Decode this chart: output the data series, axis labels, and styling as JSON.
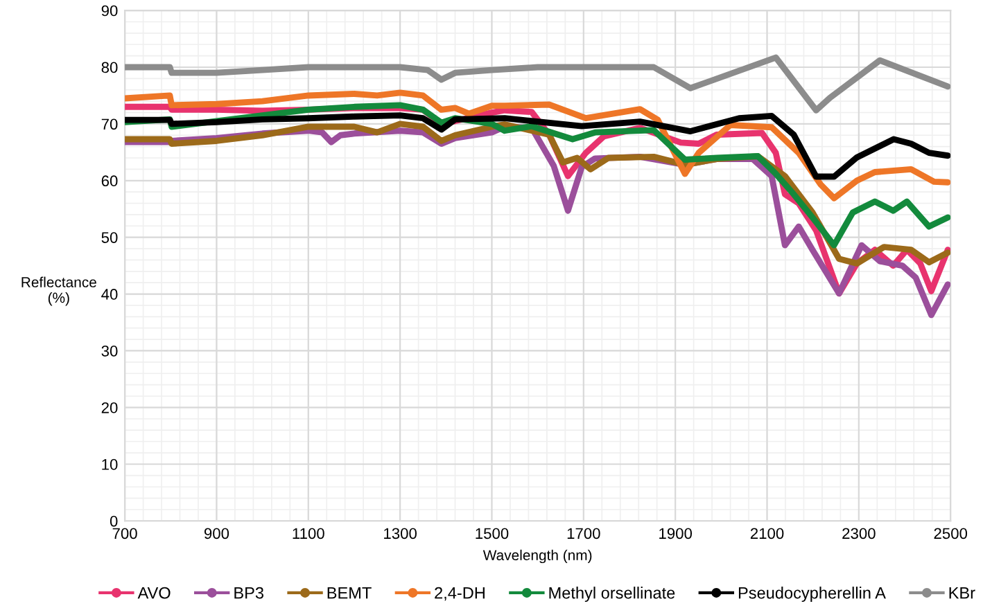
{
  "chart_data": {
    "type": "line",
    "xlabel": "Wavelength (nm)",
    "ylabel": "Reflectance\n(%)",
    "xlim": [
      700,
      2500
    ],
    "ylim": [
      0,
      90
    ],
    "xticks": [
      700,
      900,
      1100,
      1300,
      1500,
      1700,
      1900,
      2100,
      2300,
      2500
    ],
    "yticks": [
      0,
      10,
      20,
      30,
      40,
      50,
      60,
      70,
      80,
      90
    ],
    "grid": true,
    "legend": "bottom",
    "line_style": "solid",
    "series": [
      {
        "name": "AVO",
        "color": "#e8336e",
        "x": [
          700,
          798,
          802,
          900,
          1000,
          1100,
          1200,
          1300,
          1350,
          1390,
          1420,
          1500,
          1528,
          1587,
          1625,
          1666,
          1705,
          1744,
          1823,
          1912,
          1951,
          1990,
          2089,
          2119,
          2139,
          2169,
          2207,
          2257,
          2296,
          2335,
          2375,
          2405,
          2434,
          2458,
          2494
        ],
        "values": [
          73,
          73,
          72.5,
          72.5,
          72.3,
          72.5,
          72.8,
          72.8,
          72.5,
          70,
          70.5,
          72,
          72.4,
          72.1,
          68.1,
          60.8,
          64.9,
          67.8,
          69.3,
          66.7,
          66.5,
          68.1,
          68.4,
          64.9,
          57.6,
          56,
          51.2,
          40.1,
          45.4,
          47.8,
          45,
          47.8,
          45.4,
          40.5,
          47.8
        ]
      },
      {
        "name": "BP3",
        "color": "#9b4f9b",
        "x": [
          700,
          798,
          802,
          900,
          1000,
          1100,
          1130,
          1150,
          1170,
          1200,
          1300,
          1350,
          1390,
          1420,
          1500,
          1528,
          1587,
          1635,
          1666,
          1696,
          1725,
          1823,
          1921,
          1990,
          2069,
          2110,
          2139,
          2169,
          2199,
          2257,
          2306,
          2346,
          2395,
          2424,
          2458,
          2494
        ],
        "values": [
          66.8,
          66.8,
          67,
          67.5,
          68.3,
          68.8,
          68.5,
          66.8,
          68,
          68.3,
          68.8,
          68.5,
          66.5,
          67.5,
          68.5,
          69.5,
          69.3,
          62.6,
          54.7,
          62.4,
          63.9,
          64.2,
          62.8,
          63.8,
          63.8,
          60.8,
          48.6,
          51.9,
          47.8,
          40.1,
          48.6,
          45.8,
          45,
          42.9,
          36.3,
          41.7
        ]
      },
      {
        "name": "BEMT",
        "color": "#9c6a1a",
        "x": [
          700,
          798,
          802,
          900,
          1000,
          1100,
          1200,
          1250,
          1300,
          1350,
          1390,
          1420,
          1500,
          1528,
          1625,
          1655,
          1686,
          1715,
          1754,
          1853,
          1921,
          1990,
          2080,
          2139,
          2199,
          2257,
          2296,
          2355,
          2414,
          2453,
          2494
        ],
        "values": [
          67.3,
          67.3,
          66.5,
          67,
          68,
          69.5,
          69.5,
          68.5,
          70,
          69.5,
          67,
          68,
          69.5,
          69.9,
          68.1,
          63.2,
          64,
          62,
          64,
          64.2,
          62.8,
          63.8,
          64.3,
          60.8,
          54.4,
          46.2,
          45.4,
          48.3,
          47.8,
          45.6,
          47.3
        ]
      },
      {
        "name": "2,4-DH",
        "color": "#ee7627",
        "x": [
          700,
          798,
          802,
          900,
          1000,
          1100,
          1200,
          1250,
          1300,
          1350,
          1390,
          1420,
          1450,
          1500,
          1528,
          1625,
          1705,
          1823,
          1862,
          1921,
          1951,
          2020,
          2110,
          2169,
          2217,
          2246,
          2296,
          2335,
          2414,
          2464,
          2494
        ],
        "values": [
          74.5,
          75,
          73.3,
          73.5,
          74,
          75,
          75.3,
          75,
          75.5,
          75,
          72.5,
          72.8,
          71.8,
          73.2,
          73.2,
          73.4,
          71,
          72.6,
          70.7,
          61.2,
          64.9,
          69.8,
          69.4,
          64.9,
          59.3,
          56.9,
          60,
          61.5,
          62,
          59.8,
          59.7
        ]
      },
      {
        "name": "Methyl orsellinate",
        "color": "#138a3c",
        "x": [
          700,
          798,
          802,
          900,
          1000,
          1100,
          1200,
          1300,
          1350,
          1390,
          1420,
          1500,
          1528,
          1587,
          1676,
          1725,
          1853,
          1921,
          1990,
          2080,
          2119,
          2158,
          2199,
          2246,
          2287,
          2335,
          2375,
          2405,
          2453,
          2494
        ],
        "values": [
          70.3,
          70.8,
          69.5,
          70.5,
          71.5,
          72.5,
          73,
          73.3,
          72.5,
          70.2,
          71,
          70,
          68.8,
          69.6,
          67.3,
          68.5,
          68.9,
          63.7,
          64,
          64.3,
          61.2,
          57.6,
          53.5,
          48.6,
          54.4,
          56.3,
          54.7,
          56.3,
          51.9,
          53.5
        ]
      },
      {
        "name": "Pseudocypherellin A",
        "color": "#000000",
        "x": [
          700,
          798,
          802,
          900,
          1000,
          1100,
          1200,
          1300,
          1350,
          1390,
          1420,
          1528,
          1696,
          1823,
          1933,
          2039,
          2110,
          2158,
          2207,
          2246,
          2296,
          2376,
          2414,
          2453,
          2494
        ],
        "values": [
          70.7,
          70.7,
          70,
          70.3,
          70.8,
          71,
          71.3,
          71.5,
          71,
          69,
          70.8,
          71,
          69.6,
          70.4,
          68.7,
          71,
          71.4,
          68.1,
          60.7,
          60.7,
          64.1,
          67.3,
          66.5,
          64.9,
          64.4
        ]
      },
      {
        "name": "KBr",
        "color": "#8c8c8c",
        "x": [
          700,
          798,
          802,
          900,
          1000,
          1100,
          1200,
          1300,
          1360,
          1390,
          1420,
          1500,
          1600,
          1700,
          1853,
          1933,
          2119,
          2207,
          2237,
          2346,
          2494
        ],
        "values": [
          80,
          80,
          79,
          79,
          79.5,
          80,
          80,
          80,
          79.5,
          77.8,
          79,
          79.5,
          80,
          80,
          80,
          76.3,
          81.7,
          72.4,
          74.6,
          81.2,
          76.6
        ]
      }
    ]
  }
}
